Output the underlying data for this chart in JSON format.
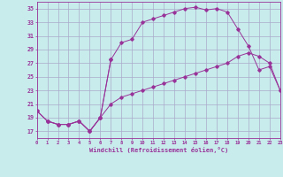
{
  "xlabel": "Windchill (Refroidissement éolien,°C)",
  "background_color": "#c8ecec",
  "grid_color": "#aaaacc",
  "line_color": "#993399",
  "xlim": [
    0,
    23
  ],
  "ylim": [
    16,
    36
  ],
  "yticks": [
    17,
    19,
    21,
    23,
    25,
    27,
    29,
    31,
    33,
    35
  ],
  "xticks": [
    0,
    1,
    2,
    3,
    4,
    5,
    6,
    7,
    8,
    9,
    10,
    11,
    12,
    13,
    14,
    15,
    16,
    17,
    18,
    19,
    20,
    21,
    22,
    23
  ],
  "line1_x": [
    0,
    1,
    2,
    3,
    4,
    5,
    6,
    7,
    8,
    9,
    10,
    11,
    12,
    13,
    14,
    15,
    16,
    17,
    18,
    19,
    20,
    21,
    22,
    23
  ],
  "line1_y": [
    20,
    18.5,
    18,
    18,
    18.5,
    17,
    19,
    27.5,
    30,
    30.5,
    33,
    33.5,
    34,
    34.5,
    35,
    35.2,
    34.8,
    35,
    34.5,
    32,
    29.5,
    26,
    26.5,
    23
  ],
  "line2_x": [
    0,
    1,
    2,
    3,
    4,
    5,
    6,
    7,
    8,
    9,
    10,
    11,
    12,
    13,
    14,
    15,
    16,
    17,
    18,
    19,
    20,
    21,
    22,
    23
  ],
  "line2_y": [
    20,
    18.5,
    18,
    18,
    18.5,
    17,
    19,
    21,
    22,
    22.5,
    23,
    23.5,
    24,
    24.5,
    25,
    25.5,
    26,
    26.5,
    27,
    28,
    28.5,
    28,
    27,
    23
  ],
  "line3_x": [
    1,
    2,
    3,
    4,
    5,
    6,
    7
  ],
  "line3_y": [
    18.5,
    18,
    18,
    18.5,
    17,
    19,
    27.5
  ]
}
